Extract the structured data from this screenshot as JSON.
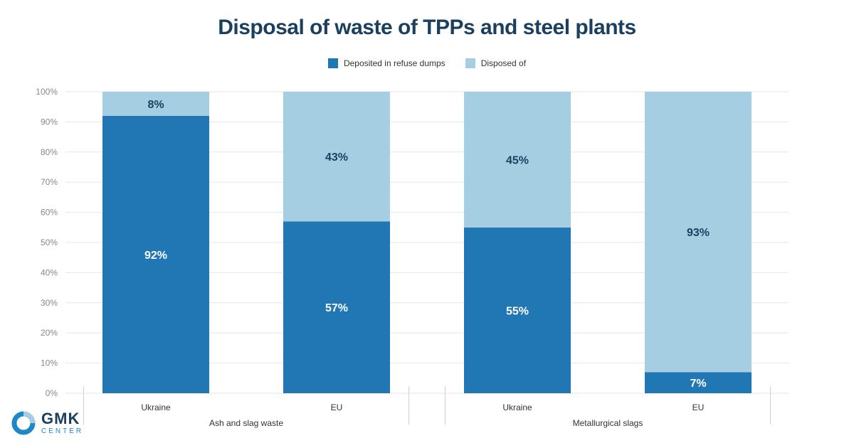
{
  "chart_data": {
    "type": "bar",
    "stacked": true,
    "percent": true,
    "title": "Disposal of waste of TPPs and steel plants",
    "legend_position": "top",
    "grid": true,
    "ylim": [
      0,
      100
    ],
    "y_ticks": [
      "0%",
      "10%",
      "20%",
      "30%",
      "40%",
      "50%",
      "60%",
      "70%",
      "80%",
      "90%",
      "100%"
    ],
    "categories": [
      "Ukraine",
      "EU",
      "Ukraine",
      "EU"
    ],
    "groups": [
      {
        "label": "Ash and slag waste",
        "categories": [
          0,
          1
        ]
      },
      {
        "label": "Metallurgical slags",
        "categories": [
          2,
          3
        ]
      }
    ],
    "series": [
      {
        "name": "Deposited in refuse dumps",
        "color": "#2077b4",
        "values": [
          92,
          57,
          55,
          7
        ],
        "labels": [
          "92%",
          "57%",
          "55%",
          "7%"
        ]
      },
      {
        "name": "Disposed of",
        "color": "#a6cee3",
        "values": [
          8,
          43,
          45,
          93
        ],
        "labels": [
          "8%",
          "43%",
          "45%",
          "93%"
        ]
      }
    ]
  },
  "logo": {
    "word": "GMK",
    "sub": "CENTER"
  }
}
